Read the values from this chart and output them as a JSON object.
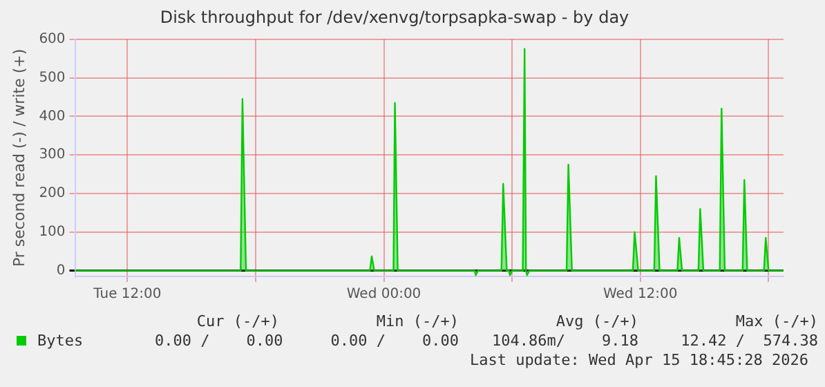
{
  "chart_data": {
    "type": "area",
    "title": "Disk throughput for /dev/xenvg/torpsapka-swap - by day",
    "ylabel": "Pr second read (-) / write (+)",
    "x": [
      "2026-04-14T09:33",
      "2026-04-14T17:18",
      "2026-04-14T17:23",
      "2026-04-14T17:33",
      "2026-04-14T23:21",
      "2026-04-14T23:26",
      "2026-04-14T23:33",
      "2026-04-15T00:27",
      "2026-04-15T00:31",
      "2026-04-15T00:39",
      "2026-04-15T04:15",
      "2026-04-15T04:18",
      "2026-04-15T04:24",
      "2026-04-15T05:30",
      "2026-04-15T05:35",
      "2026-04-15T05:45",
      "2026-04-15T05:51",
      "2026-04-15T05:54",
      "2026-04-15T06:00",
      "2026-04-15T06:30",
      "2026-04-15T06:35",
      "2026-04-15T06:39",
      "2026-04-15T06:42",
      "2026-04-15T06:48",
      "2026-04-15T08:33",
      "2026-04-15T08:38",
      "2026-04-15T08:48",
      "2026-04-15T11:39",
      "2026-04-15T11:44",
      "2026-04-15T11:54",
      "2026-04-15T12:39",
      "2026-04-15T12:44",
      "2026-04-15T12:54",
      "2026-04-15T13:44",
      "2026-04-15T13:49",
      "2026-04-15T13:57",
      "2026-04-15T14:43",
      "2026-04-15T14:48",
      "2026-04-15T14:57",
      "2026-04-15T15:43",
      "2026-04-15T15:48",
      "2026-04-15T15:57",
      "2026-04-15T16:47",
      "2026-04-15T16:52",
      "2026-04-15T17:00",
      "2026-04-15T17:47",
      "2026-04-15T17:52",
      "2026-04-15T18:00",
      "2026-04-15T18:42"
    ],
    "series": [
      {
        "name": "Bytes",
        "color": "#00cc00",
        "values": [
          0,
          0,
          445,
          0,
          0,
          37,
          0,
          0,
          435,
          0,
          0,
          -12,
          0,
          0,
          225,
          0,
          0,
          -12,
          0,
          0,
          575,
          0,
          -12,
          0,
          0,
          275,
          0,
          0,
          100,
          0,
          0,
          245,
          0,
          0,
          85,
          0,
          0,
          160,
          0,
          0,
          420,
          0,
          0,
          235,
          0,
          0,
          85,
          0,
          0
        ]
      }
    ],
    "xlim": [
      "2026-04-14T09:33",
      "2026-04-15T18:42"
    ],
    "xticks": [
      {
        "value": "2026-04-14T12:00",
        "label": "Tue 12:00"
      },
      {
        "value": "2026-04-14T18:00",
        "label": null
      },
      {
        "value": "2026-04-15T00:00",
        "label": "Wed 00:00"
      },
      {
        "value": "2026-04-15T06:00",
        "label": null
      },
      {
        "value": "2026-04-15T12:00",
        "label": "Wed 12:00"
      },
      {
        "value": "2026-04-15T18:00",
        "label": null
      }
    ],
    "ylim": [
      -15,
      600
    ],
    "yticks": [
      0,
      100,
      200,
      300,
      400,
      500,
      600
    ],
    "grid": true,
    "legend": "bottom left",
    "marker": "none",
    "line_style": "solid",
    "annotations": [
      "Cur (-/+)",
      "Min (-/+)",
      "Avg (-/+)",
      "Max (-/+)",
      "0.00 /    0.00",
      "0.00 /    0.00",
      "104.86m/    9.18",
      "12.42 /  574.38",
      "Last update: Wed Apr 15 18:45:28 2026"
    ]
  }
}
